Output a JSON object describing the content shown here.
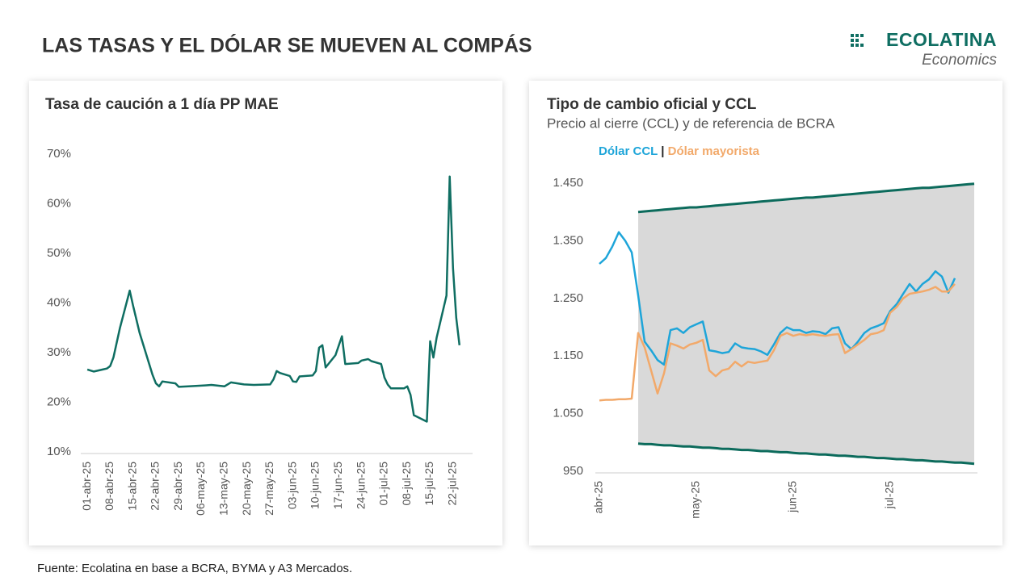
{
  "title": "LAS TASAS Y EL DÓLAR SE MUEVEN AL COMPÁS",
  "logo": {
    "name": "ECOLATINA",
    "tagline": "Economics"
  },
  "source": "Fuente: Ecolatina en base a BCRA, BYMA y A3 Mercados.",
  "chart_data": [
    {
      "type": "line",
      "title": "Tasa de caución a 1 día PP MAE",
      "x": [
        "2025-04-01",
        "2025-04-03",
        "2025-04-07",
        "2025-04-08",
        "2025-04-09",
        "2025-04-11",
        "2025-04-14",
        "2025-04-15",
        "2025-04-17",
        "2025-04-21",
        "2025-04-22",
        "2025-04-23",
        "2025-04-24",
        "2025-04-28",
        "2025-04-29",
        "2025-05-02",
        "2025-05-07",
        "2025-05-09",
        "2025-05-13",
        "2025-05-15",
        "2025-05-19",
        "2025-05-22",
        "2025-05-27",
        "2025-05-28",
        "2025-05-29",
        "2025-05-30",
        "2025-06-02",
        "2025-06-03",
        "2025-06-04",
        "2025-06-05",
        "2025-06-09",
        "2025-06-10",
        "2025-06-11",
        "2025-06-12",
        "2025-06-13",
        "2025-06-16",
        "2025-06-18",
        "2025-06-19",
        "2025-06-23",
        "2025-06-24",
        "2025-06-26",
        "2025-06-27",
        "2025-06-30",
        "2025-07-01",
        "2025-07-02",
        "2025-07-03",
        "2025-07-07",
        "2025-07-08",
        "2025-07-09",
        "2025-07-10",
        "2025-07-14",
        "2025-07-15",
        "2025-07-16",
        "2025-07-17",
        "2025-07-20",
        "2025-07-21",
        "2025-07-22",
        "2025-07-23",
        "2025-07-24"
      ],
      "series": [
        {
          "color": "#0f6e62",
          "values": [
            26.6,
            26.2,
            26.8,
            27.3,
            29.0,
            35.0,
            42.5,
            39.5,
            34.0,
            25.5,
            23.8,
            23.2,
            24.2,
            23.8,
            23.1,
            23.2,
            23.4,
            23.5,
            23.2,
            24.0,
            23.6,
            23.5,
            23.6,
            24.6,
            26.3,
            25.9,
            25.3,
            24.2,
            24.1,
            25.2,
            25.4,
            26.3,
            31.0,
            31.5,
            27.0,
            29.5,
            33.3,
            27.7,
            27.9,
            28.4,
            28.7,
            28.3,
            27.7,
            25.0,
            23.6,
            22.8,
            22.8,
            23.2,
            21.5,
            17.4,
            16.1,
            32.3,
            29.0,
            33.0,
            41.5,
            65.5,
            47.0,
            37.0,
            31.5
          ]
        }
      ],
      "xlim": [
        "2025-03-30",
        "2025-07-28"
      ],
      "xticks": [
        {
          "value": "2025-04-01",
          "label": "01-abr-25"
        },
        {
          "value": "2025-04-08",
          "label": "08-abr-25"
        },
        {
          "value": "2025-04-15",
          "label": "15-abr-25"
        },
        {
          "value": "2025-04-22",
          "label": "22-abr-25"
        },
        {
          "value": "2025-04-29",
          "label": "29-abr-25"
        },
        {
          "value": "2025-05-06",
          "label": "06-may-25"
        },
        {
          "value": "2025-05-13",
          "label": "13-may-25"
        },
        {
          "value": "2025-05-20",
          "label": "20-may-25"
        },
        {
          "value": "2025-05-27",
          "label": "27-may-25"
        },
        {
          "value": "2025-06-03",
          "label": "03-jun-25"
        },
        {
          "value": "2025-06-10",
          "label": "10-jun-25"
        },
        {
          "value": "2025-06-17",
          "label": "17-jun-25"
        },
        {
          "value": "2025-06-24",
          "label": "24-jun-25"
        },
        {
          "value": "2025-07-01",
          "label": "01-jul-25"
        },
        {
          "value": "2025-07-08",
          "label": "08-jul-25"
        },
        {
          "value": "2025-07-15",
          "label": "15-jul-25"
        },
        {
          "value": "2025-07-22",
          "label": "22-jul-25"
        }
      ],
      "ylim": [
        10,
        70
      ],
      "yticks": [
        {
          "value": 10,
          "label": "10%"
        },
        {
          "value": 20,
          "label": "20%"
        },
        {
          "value": 30,
          "label": "30%"
        },
        {
          "value": 40,
          "label": "40%"
        },
        {
          "value": 50,
          "label": "50%"
        },
        {
          "value": 60,
          "label": "60%"
        },
        {
          "value": 70,
          "label": "70%"
        }
      ],
      "grid": false
    },
    {
      "type": "line",
      "title": "Tipo de cambio oficial y CCL",
      "subtitle": "Precio al cierre (CCL) y de referencia de BCRA",
      "legend_separator": "|",
      "categories": [
        "abr-25",
        null,
        null,
        null,
        null,
        null,
        null,
        null,
        null,
        null,
        null,
        null,
        null,
        null,
        null,
        "may-25",
        null,
        null,
        null,
        null,
        null,
        null,
        null,
        null,
        null,
        null,
        null,
        null,
        null,
        null,
        "jun-25",
        null,
        null,
        null,
        null,
        null,
        null,
        null,
        null,
        null,
        null,
        null,
        null,
        null,
        null,
        "jul-25",
        null,
        null,
        null,
        null,
        null,
        null,
        null,
        null,
        null,
        null,
        null,
        null,
        null
      ],
      "series": [
        {
          "name": "Dólar CCL",
          "color": "#1ea5d9",
          "values": [
            1310,
            1320,
            1340,
            1365,
            1350,
            1330,
            1255,
            1175,
            1160,
            1143,
            1135,
            1195,
            1198,
            1190,
            1200,
            1205,
            1210,
            1160,
            1158,
            1155,
            1157,
            1172,
            1165,
            1163,
            1162,
            1158,
            1152,
            1170,
            1190,
            1200,
            1195,
            1195,
            1190,
            1193,
            1192,
            1188,
            1198,
            1200,
            1172,
            1162,
            1175,
            1190,
            1198,
            1202,
            1207,
            1228,
            1240,
            1258,
            1275,
            1262,
            1275,
            1283,
            1297,
            1288,
            1260,
            1285,
            null,
            null,
            null
          ]
        },
        {
          "name": "Dólar mayorista",
          "color": "#f2a96a",
          "values": [
            1073,
            1074,
            1074,
            1075,
            1075,
            1076,
            1190,
            1165,
            1125,
            1085,
            1120,
            1172,
            1168,
            1163,
            1170,
            1173,
            1178,
            1125,
            1115,
            1125,
            1128,
            1140,
            1132,
            1140,
            1138,
            1140,
            1142,
            1160,
            1185,
            1190,
            1185,
            1188,
            1186,
            1188,
            1186,
            1185,
            1187,
            1188,
            1155,
            1162,
            1170,
            1178,
            1188,
            1190,
            1195,
            1225,
            1235,
            1250,
            1258,
            1260,
            1262,
            1265,
            1270,
            1262,
            1262,
            1275,
            null,
            null,
            null
          ]
        }
      ],
      "band": {
        "color": "#0c6b5c",
        "fill": "#d9d9d9",
        "upper": [
          null,
          null,
          null,
          null,
          null,
          null,
          1400,
          1401,
          1402,
          1403,
          1404,
          1405,
          1406,
          1407,
          1408,
          1408,
          1409,
          1410,
          1411,
          1412,
          1413,
          1414,
          1415,
          1416,
          1417,
          1418,
          1419,
          1420,
          1421,
          1422,
          1423,
          1424,
          1425,
          1425,
          1426,
          1427,
          1428,
          1429,
          1430,
          1431,
          1432,
          1433,
          1434,
          1435,
          1436,
          1437,
          1438,
          1439,
          1440,
          1441,
          1442,
          1442,
          1443,
          1444,
          1445,
          1446,
          1447,
          1448,
          1449
        ],
        "lower": [
          null,
          null,
          null,
          null,
          null,
          null,
          998,
          997,
          997,
          996,
          995,
          995,
          994,
          993,
          993,
          992,
          991,
          991,
          990,
          989,
          989,
          988,
          987,
          987,
          986,
          985,
          985,
          984,
          983,
          983,
          982,
          981,
          981,
          980,
          979,
          979,
          978,
          977,
          977,
          976,
          975,
          975,
          974,
          973,
          973,
          972,
          971,
          971,
          970,
          969,
          969,
          968,
          967,
          967,
          966,
          965,
          965,
          964,
          963
        ]
      },
      "ylim": [
        950,
        1450
      ],
      "yticks": [
        950,
        {
          "value": 1050,
          "label": "1.050"
        },
        {
          "value": 1150,
          "label": "1.150"
        },
        {
          "value": 1250,
          "label": "1.250"
        },
        {
          "value": 1350,
          "label": "1.350"
        },
        {
          "value": 1450,
          "label": "1.450"
        }
      ],
      "grid": false
    }
  ]
}
